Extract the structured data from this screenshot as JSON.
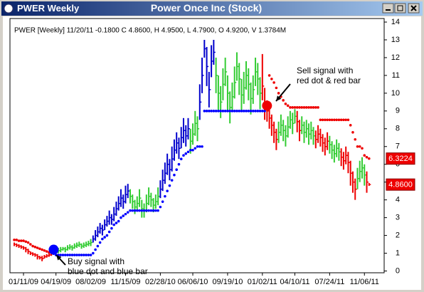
{
  "window_title": "PWER Weekly",
  "chart_data": {
    "type": "ohlc",
    "title": "Power Once Inc (Stock)",
    "header": "PWER [Weekly] 11/20/11  -0.1800 C 4.8600, H 4.9500, L 4.7900, O 4.9200, V 1.3784M",
    "categories": [
      null,
      null,
      null,
      null,
      "01/11/09",
      null,
      null,
      null,
      null,
      null,
      null,
      null,
      null,
      null,
      null,
      null,
      null,
      null,
      "04/19/09",
      null,
      null,
      null,
      null,
      null,
      null,
      null,
      null,
      null,
      null,
      null,
      null,
      null,
      null,
      "08/02/09",
      null,
      null,
      null,
      null,
      null,
      null,
      null,
      null,
      null,
      null,
      null,
      null,
      null,
      null,
      "11/15/09",
      null,
      null,
      null,
      null,
      null,
      null,
      null,
      null,
      null,
      null,
      null,
      null,
      null,
      null,
      "02/28/10",
      null,
      null,
      null,
      null,
      null,
      null,
      null,
      null,
      null,
      null,
      null,
      null,
      null,
      "06/06/10",
      null,
      null,
      null,
      null,
      null,
      null,
      null,
      null,
      null,
      null,
      null,
      null,
      null,
      null,
      "09/19/10",
      null,
      null,
      null,
      null,
      null,
      null,
      null,
      null,
      null,
      null,
      null,
      null,
      null,
      null,
      "01/02/11",
      null,
      null,
      null,
      null,
      null,
      null,
      null,
      null,
      null,
      null,
      null,
      null,
      null,
      "04/10/11",
      null,
      null,
      null,
      null,
      null,
      null,
      null,
      null,
      null,
      null,
      null,
      null,
      null,
      null,
      "07/24/11",
      null,
      null,
      null,
      null,
      null,
      null,
      null,
      null,
      null,
      null,
      null,
      null,
      null,
      null,
      "11/06/11",
      null,
      null
    ],
    "high": [
      1.6,
      1.55,
      1.5,
      1.45,
      1.4,
      1.35,
      1.25,
      1.1,
      1.05,
      1.0,
      0.95,
      0.85,
      0.85,
      0.9,
      0.95,
      1.0,
      1.05,
      1.1,
      1.2,
      1.3,
      1.35,
      1.35,
      1.35,
      1.45,
      1.5,
      1.45,
      1.55,
      1.6,
      1.65,
      1.55,
      1.6,
      1.65,
      1.7,
      1.8,
      2.0,
      2.3,
      2.5,
      2.7,
      2.6,
      2.9,
      3.1,
      3.4,
      3.2,
      3.6,
      3.9,
      4.2,
      4.6,
      4.3,
      4.8,
      4.9,
      4.6,
      4.3,
      4.0,
      4.2,
      4.6,
      4.0,
      3.8,
      4.3,
      4.7,
      4.4,
      4.1,
      4.3,
      4.7,
      5.1,
      5.7,
      6.1,
      6.6,
      6.3,
      7.0,
      7.4,
      7.8,
      7.5,
      8.1,
      8.6,
      8.2,
      8.6,
      8.0,
      8.3,
      9.0,
      8.7,
      10.5,
      12.0,
      13.0,
      12.6,
      11.2,
      12.7,
      13.0,
      12.0,
      11.0,
      10.4,
      11.4,
      12.0,
      11.0,
      10.1,
      10.6,
      11.5,
      12.3,
      11.7,
      10.8,
      11.2,
      11.8,
      11.4,
      10.6,
      11.0,
      12.0,
      11.7,
      10.9,
      12.2,
      10.3,
      9.6,
      9.2,
      8.8,
      8.4,
      8.0,
      8.4,
      8.8,
      8.5,
      8.2,
      8.7,
      9.0,
      8.9,
      9.1,
      9.0,
      8.5,
      8.7,
      8.4,
      8.5,
      8.3,
      8.4,
      8.1,
      7.9,
      8.2,
      8.0,
      7.7,
      7.5,
      7.8,
      7.6,
      7.3,
      7.1,
      7.4,
      7.2,
      6.9,
      6.7,
      7.0,
      6.7,
      6.2,
      5.6,
      5.2,
      5.8,
      6.2,
      6.4,
      6.0,
      5.6,
      4.95
    ],
    "low": [
      1.4,
      1.35,
      1.3,
      1.25,
      1.2,
      1.05,
      0.95,
      0.9,
      0.85,
      0.8,
      0.65,
      0.65,
      0.55,
      0.7,
      0.75,
      0.8,
      0.85,
      0.9,
      1.0,
      1.0,
      1.05,
      1.15,
      1.05,
      1.15,
      1.2,
      1.15,
      1.25,
      1.3,
      1.35,
      1.25,
      1.3,
      1.35,
      1.4,
      1.4,
      1.6,
      1.7,
      1.9,
      2.1,
      2.0,
      2.3,
      2.5,
      2.6,
      2.6,
      2.8,
      3.1,
      3.4,
      3.6,
      3.5,
      3.8,
      4.1,
      3.8,
      3.5,
      3.2,
      3.4,
      3.6,
      3.0,
      3.0,
      3.3,
      3.7,
      3.6,
      3.3,
      3.5,
      3.7,
      4.1,
      4.5,
      4.9,
      5.4,
      5.1,
      5.6,
      6.2,
      6.6,
      6.3,
      6.9,
      7.2,
      7.0,
      7.4,
      6.6,
      7.1,
      7.6,
      7.3,
      8.5,
      10.0,
      12.0,
      10.4,
      9.2,
      10.9,
      11.6,
      10.0,
      9.0,
      8.6,
      9.6,
      10.4,
      9.0,
      8.3,
      9.0,
      9.7,
      10.7,
      9.9,
      9.0,
      9.4,
      10.2,
      9.6,
      8.8,
      9.4,
      10.4,
      9.9,
      9.1,
      9.6,
      8.5,
      8.4,
      8.0,
      7.6,
      7.2,
      6.8,
      7.2,
      7.6,
      7.3,
      7.0,
      7.5,
      8.0,
      7.7,
      8.3,
      7.8,
      7.3,
      7.7,
      7.2,
      7.5,
      7.1,
      7.4,
      7.1,
      6.9,
      7.2,
      7.0,
      6.7,
      6.5,
      6.8,
      6.6,
      6.3,
      6.1,
      6.4,
      6.2,
      5.9,
      5.7,
      6.0,
      5.5,
      4.8,
      4.4,
      4.0,
      4.6,
      5.0,
      5.2,
      4.8,
      4.4,
      4.79
    ],
    "close": [
      1.5,
      1.45,
      1.4,
      1.35,
      1.3,
      1.2,
      1.1,
      1.0,
      0.95,
      0.9,
      0.8,
      0.75,
      0.7,
      0.8,
      0.85,
      0.9,
      0.95,
      1.0,
      1.1,
      1.15,
      1.2,
      1.25,
      1.2,
      1.3,
      1.35,
      1.3,
      1.4,
      1.45,
      1.5,
      1.4,
      1.45,
      1.5,
      1.55,
      1.6,
      1.8,
      2.0,
      2.2,
      2.4,
      2.3,
      2.6,
      2.8,
      3.0,
      2.9,
      3.2,
      3.5,
      3.8,
      4.1,
      3.9,
      4.3,
      4.5,
      4.2,
      3.9,
      3.6,
      3.8,
      4.1,
      3.5,
      3.4,
      3.8,
      4.2,
      4.0,
      3.7,
      3.9,
      4.2,
      4.6,
      5.1,
      5.5,
      6.0,
      5.7,
      6.3,
      6.8,
      7.2,
      6.9,
      7.5,
      7.9,
      7.6,
      8.0,
      7.3,
      7.7,
      8.3,
      8.0,
      9.5,
      11.0,
      12.5,
      11.5,
      10.2,
      11.8,
      12.3,
      11.0,
      10.0,
      9.5,
      10.5,
      11.2,
      10.0,
      9.2,
      9.8,
      10.6,
      11.5,
      10.8,
      9.9,
      10.3,
      11.0,
      10.5,
      9.7,
      10.2,
      11.2,
      10.8,
      10.0,
      10.4,
      9.4,
      9.0,
      8.6,
      8.2,
      7.8,
      7.4,
      7.8,
      8.2,
      7.9,
      7.6,
      8.1,
      8.5,
      8.3,
      8.7,
      8.4,
      7.9,
      8.2,
      7.8,
      8.0,
      7.7,
      7.9,
      7.6,
      7.4,
      7.7,
      7.5,
      7.2,
      7.0,
      7.3,
      7.1,
      6.8,
      6.6,
      6.9,
      6.7,
      6.4,
      6.2,
      6.5,
      6.1,
      5.5,
      5.0,
      4.6,
      5.2,
      5.6,
      5.8,
      5.4,
      5.0,
      4.86
    ],
    "bar_colors": [
      "#e00",
      "#e00",
      "#e00",
      "#e00",
      "#e00",
      "#e00",
      "#e00",
      "#e00",
      "#e00",
      "#e00",
      "#e00",
      "#e00",
      "#e00",
      "#e00",
      "#e00",
      "#e00",
      "#e00",
      "#00c",
      "#3c3",
      "#3c3",
      "#3c3",
      "#3c3",
      "#3c3",
      "#3c3",
      "#3c3",
      "#3c3",
      "#3c3",
      "#3c3",
      "#3c3",
      "#3c3",
      "#3c3",
      "#3c3",
      "#3c3",
      "#3c3",
      "#00c",
      "#00c",
      "#00c",
      "#00c",
      "#00c",
      "#00c",
      "#00c",
      "#00c",
      "#00c",
      "#00c",
      "#00c",
      "#00c",
      "#00c",
      "#00c",
      "#00c",
      "#00c",
      "#3c3",
      "#3c3",
      "#3c3",
      "#3c3",
      "#3c3",
      "#3c3",
      "#3c3",
      "#3c3",
      "#3c3",
      "#3c3",
      "#3c3",
      "#3c3",
      "#3c3",
      "#00c",
      "#00c",
      "#00c",
      "#00c",
      "#00c",
      "#00c",
      "#00c",
      "#00c",
      "#00c",
      "#00c",
      "#00c",
      "#00c",
      "#00c",
      "#3c3",
      "#3c3",
      "#3c3",
      "#3c3",
      "#00c",
      "#00c",
      "#00c",
      "#00c",
      "#00c",
      "#00c",
      "#00c",
      "#3c3",
      "#3c3",
      "#3c3",
      "#3c3",
      "#3c3",
      "#3c3",
      "#3c3",
      "#3c3",
      "#3c3",
      "#3c3",
      "#3c3",
      "#3c3",
      "#3c3",
      "#3c3",
      "#3c3",
      "#3c3",
      "#3c3",
      "#3c3",
      "#3c3",
      "#3c3",
      "#e00",
      "#e00",
      "#e00",
      "#e00",
      "#e00",
      "#e00",
      "#e00",
      "#3c3",
      "#3c3",
      "#3c3",
      "#3c3",
      "#3c3",
      "#3c3",
      "#3c3",
      "#3c3",
      "#e00",
      "#e00",
      "#3c3",
      "#3c3",
      "#3c3",
      "#3c3",
      "#3c3",
      "#3c3",
      "#e00",
      "#e00",
      "#e00",
      "#e00",
      "#e00",
      "#e00",
      "#3c3",
      "#3c3",
      "#3c3",
      "#3c3",
      "#3c3",
      "#e00",
      "#e00",
      "#e00",
      "#e00",
      "#e00",
      "#e00",
      "#e00",
      "#3c3",
      "#3c3",
      "#3c3",
      "#3c3",
      "#e00",
      "#e00"
    ],
    "stop_values": [
      1.75,
      1.75,
      1.7,
      1.7,
      1.7,
      1.65,
      1.6,
      1.5,
      1.4,
      1.35,
      1.3,
      1.25,
      1.2,
      1.15,
      1.1,
      1.05,
      1.0,
      1.2,
      0.9,
      0.9,
      0.9,
      0.9,
      0.9,
      0.9,
      0.9,
      0.9,
      0.9,
      0.9,
      0.9,
      0.9,
      0.9,
      0.9,
      0.9,
      0.9,
      1.0,
      1.2,
      1.4,
      1.6,
      1.8,
      1.9,
      2.0,
      2.2,
      2.4,
      2.6,
      2.7,
      2.8,
      3.0,
      3.1,
      3.2,
      3.3,
      3.4,
      3.4,
      3.4,
      3.4,
      3.4,
      3.4,
      3.4,
      3.4,
      3.4,
      3.4,
      3.4,
      3.4,
      3.4,
      3.6,
      3.9,
      4.2,
      4.5,
      4.8,
      5.1,
      5.4,
      5.7,
      6.0,
      6.3,
      6.5,
      6.6,
      6.7,
      6.8,
      6.8,
      6.9,
      7.0,
      7.0,
      7.0,
      9.0,
      9.0,
      9.0,
      9.0,
      9.0,
      9.0,
      9.0,
      9.0,
      9.0,
      9.0,
      9.0,
      9.0,
      9.0,
      9.0,
      9.0,
      9.0,
      9.0,
      9.0,
      9.0,
      9.0,
      9.0,
      9.0,
      9.0,
      9.0,
      9.0,
      9.0,
      9.0,
      9.3,
      11.0,
      10.8,
      10.6,
      10.3,
      10.0,
      9.8,
      9.6,
      9.4,
      9.3,
      9.2,
      9.2,
      9.2,
      9.2,
      9.2,
      9.2,
      9.2,
      9.2,
      9.2,
      9.2,
      9.2,
      9.2,
      9.2,
      8.5,
      8.5,
      8.5,
      8.5,
      8.5,
      8.5,
      8.5,
      8.5,
      8.5,
      8.5,
      8.5,
      8.5,
      8.5,
      8.2,
      7.8,
      7.4,
      7.0,
      7.0,
      6.9,
      6.5,
      6.4,
      6.3224
    ],
    "stop_colors": [
      "#e00",
      "#e00",
      "#e00",
      "#e00",
      "#e00",
      "#e00",
      "#e00",
      "#e00",
      "#e00",
      "#e00",
      "#e00",
      "#e00",
      "#e00",
      "#e00",
      "#e00",
      "#e00",
      "#e00",
      "#00f",
      "#00f",
      "#00f",
      "#00f",
      "#00f",
      "#00f",
      "#00f",
      "#00f",
      "#00f",
      "#00f",
      "#00f",
      "#00f",
      "#00f",
      "#00f",
      "#00f",
      "#00f",
      "#00f",
      "#00f",
      "#00f",
      "#00f",
      "#00f",
      "#00f",
      "#00f",
      "#00f",
      "#00f",
      "#00f",
      "#00f",
      "#00f",
      "#00f",
      "#00f",
      "#00f",
      "#00f",
      "#00f",
      "#00f",
      "#00f",
      "#00f",
      "#00f",
      "#00f",
      "#00f",
      "#00f",
      "#00f",
      "#00f",
      "#00f",
      "#00f",
      "#00f",
      "#00f",
      "#00f",
      "#00f",
      "#00f",
      "#00f",
      "#00f",
      "#00f",
      "#00f",
      "#00f",
      "#00f",
      "#00f",
      "#00f",
      "#00f",
      "#00f",
      "#00f",
      "#00f",
      "#00f",
      "#00f",
      "#00f",
      "#00f",
      "#00f",
      "#00f",
      "#00f",
      "#00f",
      "#00f",
      "#00f",
      "#00f",
      "#00f",
      "#00f",
      "#00f",
      "#00f",
      "#00f",
      "#00f",
      "#00f",
      "#00f",
      "#00f",
      "#00f",
      "#00f",
      "#00f",
      "#00f",
      "#00f",
      "#00f",
      "#00f",
      "#00f",
      "#00f",
      "#00f",
      "#00f",
      "#e00",
      "#e00",
      "#e00",
      "#e00",
      "#e00",
      "#e00",
      "#e00",
      "#e00",
      "#e00",
      "#e00",
      "#e00",
      "#e00",
      "#e00",
      "#e00",
      "#e00",
      "#e00",
      "#e00",
      "#e00",
      "#e00",
      "#e00",
      "#e00",
      "#e00",
      "#e00",
      "#e00",
      "#e00",
      "#e00",
      "#e00",
      "#e00",
      "#e00",
      "#e00",
      "#e00",
      "#e00",
      "#e00",
      "#e00",
      "#e00",
      "#e00",
      "#e00",
      "#e00",
      "#e00",
      "#e00",
      "#e00",
      "#e00",
      "#e00",
      "#e00",
      "#e00"
    ],
    "ylim": [
      -0.1,
      14.2
    ],
    "yticks": [
      0,
      1,
      2,
      3,
      4,
      5,
      6,
      7,
      8,
      9,
      10,
      11,
      12,
      13,
      14
    ],
    "price_tags": [
      {
        "value": 6.3224,
        "label": "6.3224"
      },
      {
        "value": 4.86,
        "label": "4.8600"
      }
    ],
    "annotations": [
      {
        "lines": [
          "Buy signal with",
          "blue dot and blue bar"
        ]
      },
      {
        "lines": [
          "Sell signal with",
          "red dot & red bar"
        ]
      }
    ]
  }
}
